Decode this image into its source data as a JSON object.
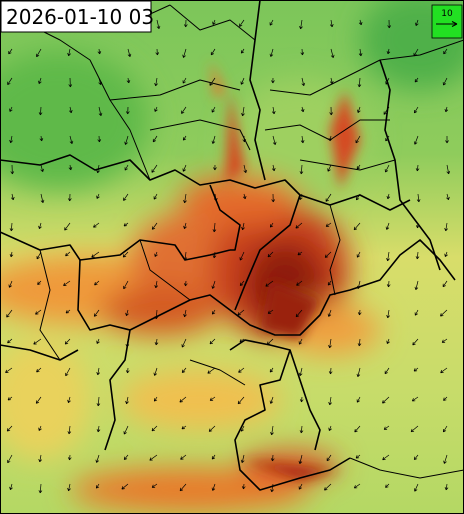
{
  "timestamp": "2026-01-10 03",
  "legend": {
    "label": "10"
  }
}
